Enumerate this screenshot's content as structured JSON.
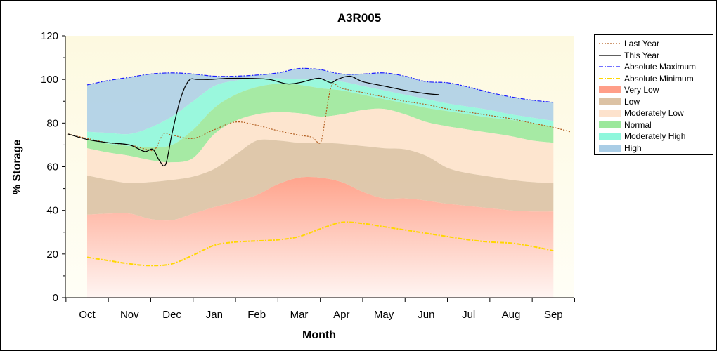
{
  "chart_data": {
    "type": "area",
    "title": "A3R005",
    "xlabel": "Month",
    "ylabel": "% Storage",
    "ylim": [
      0,
      120
    ],
    "yticks": [
      0,
      20,
      40,
      60,
      80,
      100,
      120
    ],
    "grid": false,
    "legend_position": "right",
    "x_categories": [
      "Oct",
      "Nov",
      "Dec",
      "Jan",
      "Feb",
      "Mar",
      "Apr",
      "May",
      "Jun",
      "Jul",
      "Aug",
      "Sep"
    ],
    "band_boundaries": {
      "x": [
        0,
        0.5,
        1,
        1.5,
        2,
        2.5,
        3,
        3.5,
        4,
        4.5,
        5,
        5.5,
        6,
        6.5,
        7,
        7.5,
        8,
        8.5,
        9,
        9.5,
        10,
        10.5,
        11
      ],
      "very_low_top": [
        38,
        38.5,
        38.5,
        36,
        35.5,
        38.5,
        41.5,
        44,
        47,
        52,
        55,
        55,
        53,
        48.5,
        45.5,
        45.5,
        44.5,
        43,
        42,
        41,
        40,
        39.5,
        39.5
      ],
      "low_top": [
        56,
        54,
        52.5,
        53,
        54,
        55.5,
        59,
        65.5,
        72,
        72,
        71,
        71,
        70.5,
        69.5,
        68.5,
        68,
        65,
        59.5,
        57,
        55.5,
        54,
        53,
        52.5
      ],
      "moderately_low_top": [
        68.5,
        66.5,
        65,
        63,
        62,
        64,
        75,
        81,
        84,
        85,
        84.5,
        83,
        84,
        86,
        86.5,
        84,
        80.5,
        78.5,
        77,
        75.5,
        74,
        72,
        71
      ],
      "normal_top": [
        72.5,
        70.5,
        69.5,
        69,
        70,
        77,
        87,
        93,
        96.5,
        98,
        97.5,
        96,
        95,
        93,
        91,
        89,
        87,
        85.5,
        84,
        82.5,
        81.5,
        80,
        78.5
      ],
      "moderately_high_top": [
        76,
        75.5,
        75,
        78,
        83,
        90,
        97,
        99.5,
        100.5,
        100.5,
        100,
        100,
        99,
        97,
        95,
        93,
        91,
        89,
        87.5,
        86,
        84,
        82.5,
        81
      ],
      "high_top": [
        97.5,
        99.5,
        101,
        102.5,
        103,
        102.5,
        101.5,
        101.5,
        102,
        103,
        105,
        104.5,
        102.5,
        102.5,
        103,
        101.5,
        99,
        98.5,
        96.5,
        94,
        92,
        90.5,
        89.5
      ]
    },
    "series": [
      {
        "name": "Last Year",
        "style": "dotted",
        "color": "#b05a1a",
        "x": [
          -0.45,
          0,
          0.5,
          1,
          1.4,
          1.6,
          1.8,
          2,
          2.5,
          3,
          3.5,
          4,
          4.5,
          5,
          5.3,
          5.5,
          5.6,
          5.7,
          5.8,
          6,
          6.5,
          7,
          7.5,
          8,
          8.5,
          9,
          9.5,
          10,
          10.5,
          11,
          11.4
        ],
        "values": [
          75,
          73,
          71,
          70,
          68,
          68,
          75,
          74.5,
          73,
          77,
          80.5,
          79,
          76.5,
          74.5,
          73.5,
          71,
          80,
          92,
          98,
          96,
          94,
          92,
          90,
          88.5,
          86.5,
          85,
          83.5,
          82,
          80,
          78,
          76
        ]
      },
      {
        "name": "This Year",
        "style": "solid",
        "color": "#000000",
        "x": [
          -0.45,
          0,
          0.5,
          1,
          1.35,
          1.55,
          1.7,
          1.85,
          2,
          2.2,
          2.4,
          2.6,
          2.9,
          3.3,
          3.8,
          4.3,
          4.7,
          5,
          5.3,
          5.5,
          5.75,
          5.9,
          6.2,
          6.5,
          7,
          7.5,
          8,
          8.3
        ],
        "values": [
          75,
          72.5,
          71,
          70,
          67,
          68,
          63,
          61,
          75,
          91,
          99.5,
          100,
          100,
          100.5,
          100.5,
          100,
          98,
          98.5,
          100,
          100.5,
          98.5,
          100,
          101.5,
          99,
          97,
          95,
          93.5,
          93
        ]
      },
      {
        "name": "Absolute Maximum",
        "style": "dash-dot",
        "color": "#1a1aff",
        "x": [
          0,
          0.5,
          1,
          1.5,
          2,
          2.5,
          3,
          3.5,
          4,
          4.5,
          5,
          5.5,
          6,
          6.5,
          7,
          7.5,
          8,
          8.5,
          9,
          9.5,
          10,
          10.5,
          11
        ],
        "values": [
          97.5,
          99.5,
          101,
          102.5,
          103,
          102.5,
          101.5,
          101.5,
          102,
          103,
          105,
          104.5,
          102.5,
          102.5,
          103,
          101.5,
          99,
          98.5,
          96.5,
          94,
          92,
          90.5,
          89.5
        ]
      },
      {
        "name": "Absolute Minimum",
        "style": "dash-dot",
        "color": "#ffd700",
        "x": [
          0,
          0.5,
          1,
          1.5,
          2,
          2.5,
          3,
          3.5,
          4,
          4.5,
          5,
          5.5,
          6,
          6.5,
          7,
          7.5,
          8,
          8.5,
          9,
          9.5,
          10,
          10.5,
          11
        ],
        "values": [
          18.5,
          17,
          15.5,
          14.7,
          15.5,
          19.5,
          24,
          25.5,
          26,
          26.5,
          28,
          31.5,
          34.5,
          34,
          32.5,
          31,
          29.5,
          28,
          26.5,
          25.5,
          25,
          23.5,
          21.5
        ]
      }
    ],
    "legend": [
      {
        "label": "Last Year",
        "kind": "line",
        "style": "dotted",
        "color": "#b05a1a"
      },
      {
        "label": "This Year",
        "kind": "line",
        "style": "solid",
        "color": "#000000"
      },
      {
        "label": "Absolute Maximum",
        "kind": "line",
        "style": "dash-dot",
        "color": "#1a1aff"
      },
      {
        "label": "Absolute Minimum",
        "kind": "line",
        "style": "dash-dot",
        "color": "#ffd700"
      },
      {
        "label": "Very Low",
        "kind": "band",
        "color": "#ff9e88"
      },
      {
        "label": "Low",
        "kind": "band",
        "color": "#dcc2a4"
      },
      {
        "label": "Moderately Low",
        "kind": "band",
        "color": "#fde2cc"
      },
      {
        "label": "Normal",
        "kind": "band",
        "color": "#9ce89c"
      },
      {
        "label": "Moderately High",
        "kind": "band",
        "color": "#8ff7dc"
      },
      {
        "label": "High",
        "kind": "band",
        "color": "#a9cde6"
      }
    ]
  }
}
